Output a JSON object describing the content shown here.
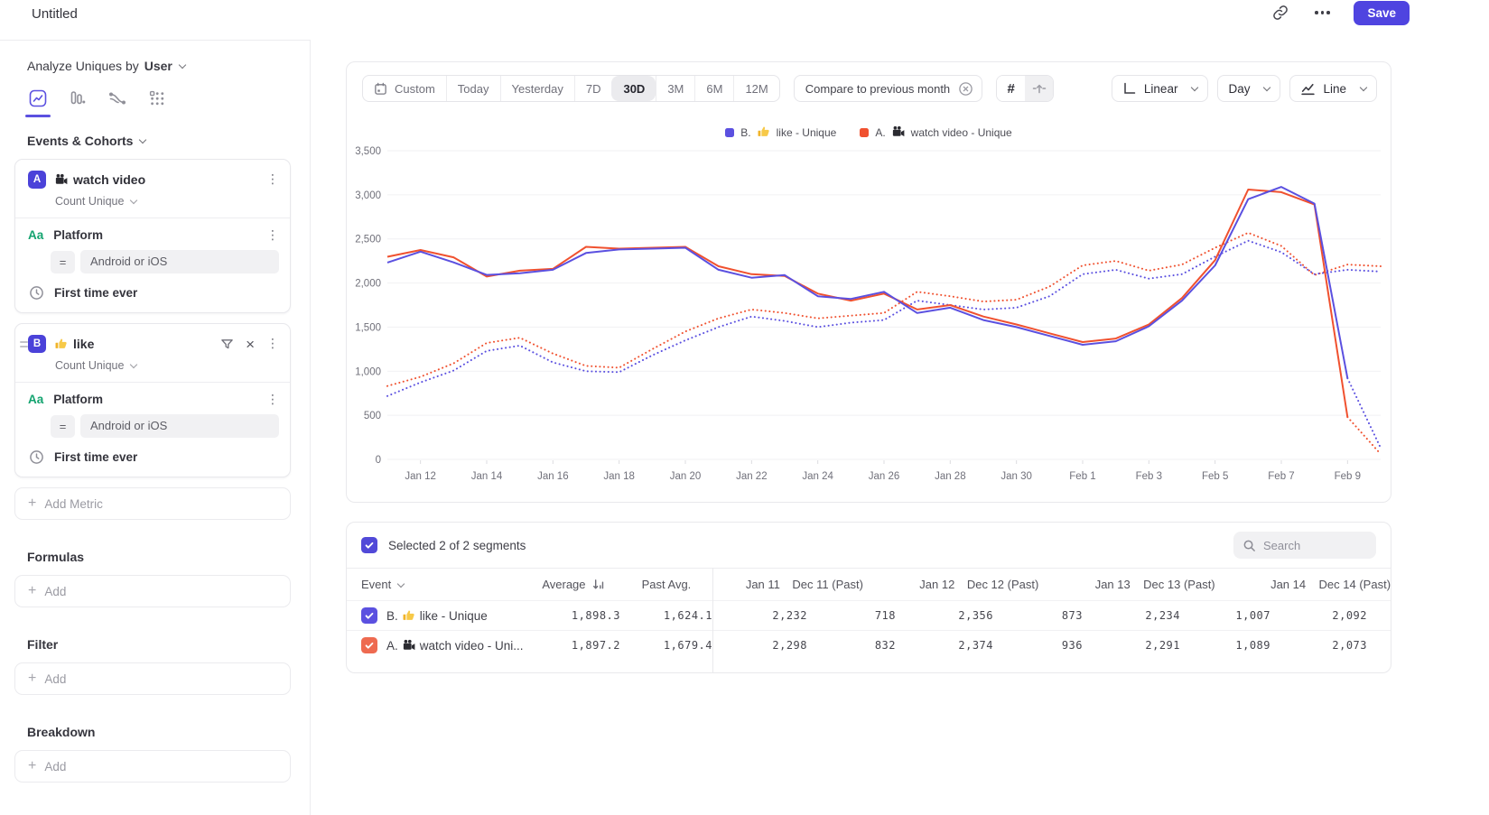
{
  "header": {
    "title": "Untitled",
    "save_label": "Save"
  },
  "sidebar": {
    "analyze_label": "Analyze Uniques by",
    "analyze_value": "User",
    "section_label": "Events & Cohorts",
    "events": [
      {
        "letter": "A",
        "icon": "movie-camera",
        "name": "watch video",
        "aggregation": "Count Unique",
        "property_icon": "Aa",
        "property": "Platform",
        "operator": "=",
        "property_value": "Android or iOS",
        "timing": "First time ever"
      },
      {
        "letter": "B",
        "icon": "thumbs-up",
        "name": "like",
        "aggregation": "Count Unique",
        "property_icon": "Aa",
        "property": "Platform",
        "operator": "=",
        "property_value": "Android or iOS",
        "timing": "First time ever"
      }
    ],
    "add_metric_label": "Add Metric",
    "sections": [
      {
        "label": "Formulas",
        "add_label": "Add"
      },
      {
        "label": "Filter",
        "add_label": "Add"
      },
      {
        "label": "Breakdown",
        "add_label": "Add"
      }
    ]
  },
  "toolbar": {
    "date_ranges": [
      "Custom",
      "Today",
      "Yesterday",
      "7D",
      "30D",
      "3M",
      "6M",
      "12M"
    ],
    "selected_range": "30D",
    "compare_label": "Compare to previous month",
    "scale_label": "Linear",
    "interval_label": "Day",
    "chart_type_label": "Line"
  },
  "chart_data": {
    "type": "line",
    "ylim": [
      0,
      3500
    ],
    "y_ticks": [
      "0",
      "500",
      "1,000",
      "1,500",
      "2,000",
      "2,500",
      "3,000",
      "3,500"
    ],
    "categories": [
      "Jan 11",
      "Jan 12",
      "Jan 13",
      "Jan 14",
      "Jan 15",
      "Jan 16",
      "Jan 17",
      "Jan 18",
      "Jan 19",
      "Jan 20",
      "Jan 21",
      "Jan 22",
      "Jan 23",
      "Jan 24",
      "Jan 25",
      "Jan 26",
      "Jan 27",
      "Jan 28",
      "Jan 29",
      "Jan 30",
      "Jan 31",
      "Feb 1",
      "Feb 2",
      "Feb 3",
      "Feb 4",
      "Feb 5",
      "Feb 6",
      "Feb 7",
      "Feb 8",
      "Feb 9",
      "Feb 10"
    ],
    "x_labels_shown": [
      "Jan 12",
      "Jan 14",
      "Jan 16",
      "Jan 18",
      "Jan 20",
      "Jan 22",
      "Jan 24",
      "Jan 26",
      "Jan 28",
      "Jan 30",
      "Feb 1",
      "Feb 3",
      "Feb 5",
      "Feb 7",
      "Feb 9"
    ],
    "legend": [
      {
        "letter": "B.",
        "icon": "thumbs-up",
        "label": "like - Unique",
        "color": "#5b50e0"
      },
      {
        "letter": "A.",
        "icon": "movie-camera",
        "label": "watch video - Unique",
        "color": "#f0512f"
      }
    ],
    "series": [
      {
        "id": "B-current",
        "color": "#5b50e0",
        "line": "solid",
        "dashed_tail": true,
        "values": [
          2232,
          2356,
          2234,
          2092,
          2110,
          2150,
          2340,
          2380,
          2390,
          2400,
          2150,
          2060,
          2090,
          1850,
          1820,
          1900,
          1660,
          1720,
          1580,
          1500,
          1400,
          1300,
          1340,
          1510,
          1800,
          2200,
          2950,
          3090,
          2900,
          920,
          130
        ]
      },
      {
        "id": "A-current",
        "color": "#f0512f",
        "line": "solid",
        "dashed_tail": true,
        "values": [
          2298,
          2374,
          2291,
          2073,
          2140,
          2160,
          2410,
          2390,
          2400,
          2410,
          2190,
          2100,
          2080,
          1880,
          1800,
          1880,
          1700,
          1750,
          1620,
          1530,
          1430,
          1330,
          1370,
          1530,
          1830,
          2260,
          3060,
          3030,
          2890,
          480,
          60
        ]
      },
      {
        "id": "B-previous",
        "color": "#5b50e0",
        "line": "dotted",
        "values": [
          718,
          873,
          1007,
          1230,
          1290,
          1100,
          1000,
          990,
          1180,
          1350,
          1500,
          1620,
          1570,
          1500,
          1550,
          1580,
          1800,
          1750,
          1700,
          1720,
          1850,
          2100,
          2150,
          2050,
          2100,
          2300,
          2480,
          2350,
          2100,
          2150,
          2130
        ]
      },
      {
        "id": "A-previous",
        "color": "#f0512f",
        "line": "dotted",
        "values": [
          832,
          936,
          1089,
          1320,
          1380,
          1200,
          1060,
          1040,
          1250,
          1450,
          1600,
          1700,
          1660,
          1600,
          1630,
          1660,
          1900,
          1850,
          1790,
          1810,
          1960,
          2200,
          2250,
          2140,
          2210,
          2400,
          2570,
          2420,
          2090,
          2210,
          2190
        ]
      }
    ]
  },
  "table": {
    "selected_label": "Selected 2 of 2 segments",
    "search_placeholder": "Search",
    "columns": [
      "Event",
      "Average",
      "Past Avg.",
      "Jan 11",
      "Dec 11 (Past)",
      "Jan 12",
      "Dec 12 (Past)",
      "Jan 13",
      "Dec 13 (Past)",
      "Jan 14",
      "Dec 14 (Past)"
    ],
    "rows": [
      {
        "letter": "B.",
        "icon": "thumbs-up",
        "label": "like - Unique",
        "checkbox_color": "#5b50e0",
        "values": [
          "1,898.3",
          "1,624.1",
          "2,232",
          "718",
          "2,356",
          "873",
          "2,234",
          "1,007",
          "2,092",
          ""
        ]
      },
      {
        "letter": "A.",
        "icon": "movie-camera",
        "label": "watch video - Uni...",
        "checkbox_color": "#ee6a50",
        "values": [
          "1,897.2",
          "1,679.4",
          "2,298",
          "832",
          "2,374",
          "936",
          "2,291",
          "1,089",
          "2,073",
          ""
        ]
      }
    ]
  }
}
